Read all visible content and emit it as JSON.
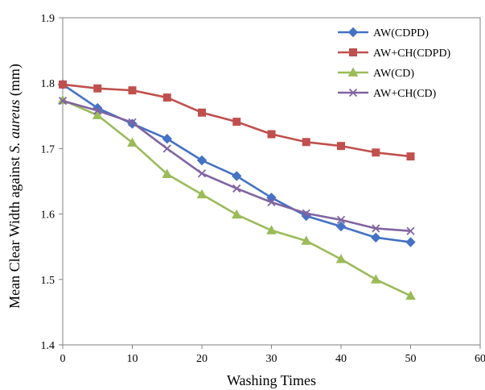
{
  "chart_data": {
    "type": "line",
    "xlabel": "Washing Times",
    "ylabel": {
      "prefix": "Mean Clear Width against ",
      "italic": "S. aureus",
      "suffix": " (mm)"
    },
    "xlim": [
      0,
      60
    ],
    "ylim": [
      1.4,
      1.9
    ],
    "xticks": [
      "0",
      "10",
      "20",
      "30",
      "40",
      "50",
      "60"
    ],
    "yticks": [
      "1.4",
      "1.5",
      "1.6",
      "1.7",
      "1.8",
      "1.9"
    ],
    "grid": false,
    "legend_position": "top-right",
    "x": [
      0,
      5,
      10,
      15,
      20,
      25,
      30,
      35,
      40,
      45,
      50
    ],
    "series": [
      {
        "name": "AW(CDPD)",
        "color": "#4472C4",
        "marker": "diamond",
        "values": [
          1.798,
          1.762,
          1.738,
          1.715,
          1.682,
          1.658,
          1.625,
          1.597,
          1.581,
          1.564,
          1.557
        ]
      },
      {
        "name": "AW+CH(CDPD)",
        "color": "#C0504D",
        "marker": "square",
        "values": [
          1.798,
          1.792,
          1.789,
          1.778,
          1.755,
          1.741,
          1.722,
          1.71,
          1.704,
          1.694,
          1.688
        ]
      },
      {
        "name": "AW(CD)",
        "color": "#9BBB59",
        "marker": "triangle",
        "values": [
          1.774,
          1.751,
          1.709,
          1.661,
          1.63,
          1.599,
          1.575,
          1.559,
          1.531,
          1.5,
          1.475
        ]
      },
      {
        "name": "AW+CH(CD)",
        "color": "#8064A2",
        "marker": "x",
        "values": [
          1.773,
          1.758,
          1.74,
          1.7,
          1.662,
          1.639,
          1.618,
          1.601,
          1.591,
          1.578,
          1.574
        ]
      }
    ]
  }
}
